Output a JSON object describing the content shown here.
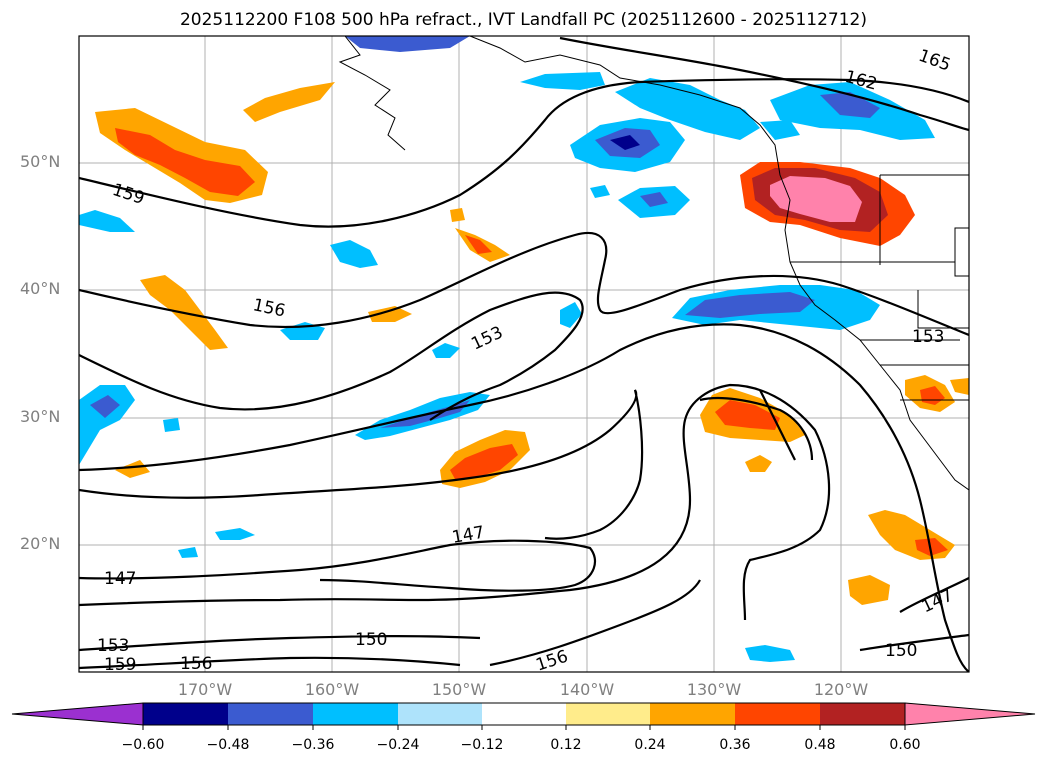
{
  "title": "2025112200 F108 500 hPa refract., IVT Landfall PC (2025112600 - 2025112712)",
  "lat_labels": [
    "50°N",
    "40°N",
    "30°N",
    "20°N"
  ],
  "lon_labels": [
    "170°W",
    "160°W",
    "150°W",
    "140°W",
    "130°W",
    "120°W"
  ],
  "contour_labels": [
    "165",
    "162",
    "159",
    "156",
    "153",
    "153",
    "147",
    "147",
    "153",
    "159",
    "156",
    "150",
    "156",
    "150",
    "147"
  ],
  "colorbar": {
    "ticks": [
      "−0.60",
      "−0.48",
      "−0.36",
      "−0.24",
      "−0.12",
      "0.12",
      "0.24",
      "0.36",
      "0.48",
      "0.60"
    ],
    "colors": {
      "below": "#9b30d0",
      "bins": [
        "#00008b",
        "#3b5bd0",
        "#00bfff",
        "#aee3fb",
        "#ffffff",
        "#ffec8b",
        "#ffa500",
        "#ff4500",
        "#b22222",
        "#ff82ab"
      ]
    }
  }
}
